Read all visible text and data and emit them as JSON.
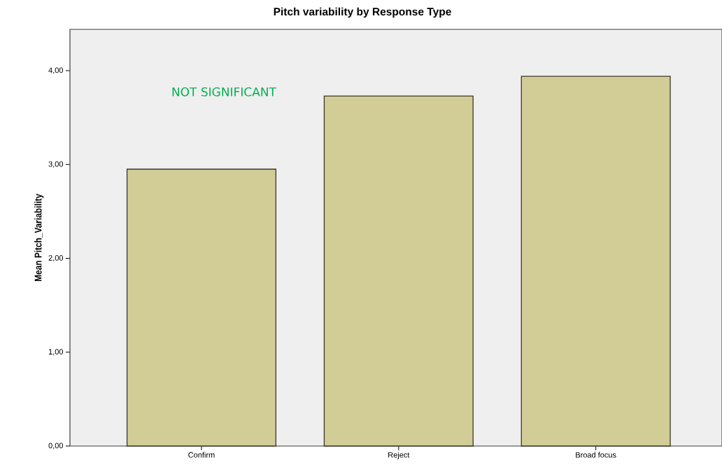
{
  "chart_data": {
    "type": "bar",
    "title": "Pitch variability by Response Type",
    "ylabel": "Mean Pitch_Variability",
    "categories": [
      "Confirm",
      "Reject",
      "Broad focus"
    ],
    "values": [
      2.95,
      3.73,
      3.94
    ],
    "color": "#d2cd96",
    "ylim": [
      0,
      4.44
    ],
    "yticks": [
      {
        "value": 0,
        "label": "0,00"
      },
      {
        "value": 1,
        "label": "1,00"
      },
      {
        "value": 2,
        "label": "2,00"
      },
      {
        "value": 3,
        "label": "3,00"
      },
      {
        "value": 4,
        "label": "4,00"
      }
    ],
    "annotations": [
      "NOT SIGNIFICANT"
    ]
  }
}
